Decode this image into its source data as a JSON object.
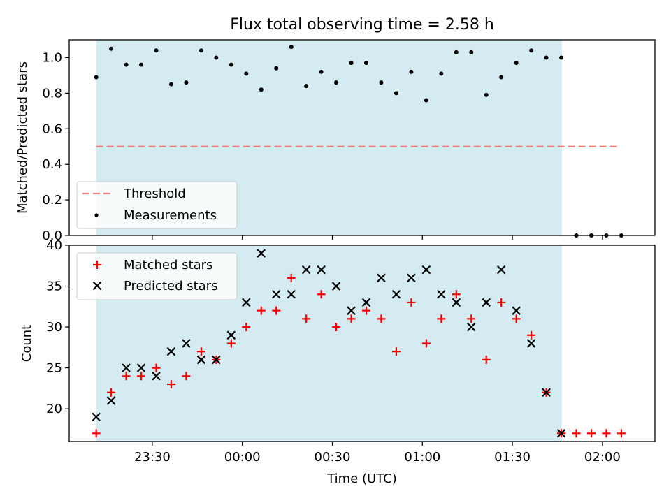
{
  "chart_data": {
    "title": "Flux total observing time = 2.58 h",
    "xlabel": "Time (UTC)",
    "x_ticks": [
      "23:30",
      "00:00",
      "00:30",
      "01:00",
      "01:30",
      "02:00"
    ],
    "x_tick_minutes": [
      -30,
      0,
      30,
      60,
      90,
      120
    ],
    "x_range_minutes": [
      -57.7,
      137.5
    ],
    "observing_window_minutes": [
      -48.7,
      106.5
    ],
    "shade_color": "#d4ebf1",
    "times": [
      "23:21",
      "23:26",
      "23:31",
      "23:36",
      "23:41",
      "23:46",
      "23:51",
      "23:56",
      "00:01",
      "00:06",
      "00:11",
      "00:16",
      "00:21",
      "00:26",
      "00:31",
      "00:36",
      "00:41",
      "00:46",
      "00:51",
      "00:56",
      "01:01",
      "01:06",
      "01:11",
      "01:16",
      "01:21",
      "01:26",
      "01:31",
      "01:36",
      "01:41",
      "01:46",
      "01:51",
      "01:56",
      "02:01",
      "02:06"
    ],
    "x_minutes": [
      -39,
      -34,
      -29,
      -24,
      -19,
      -14,
      -9,
      -4,
      1,
      6,
      11,
      16,
      21,
      26,
      31,
      36,
      41,
      46,
      51,
      56,
      61,
      66,
      71,
      76,
      81,
      86,
      91,
      96,
      101,
      106,
      111,
      116,
      121,
      126
    ],
    "panels": [
      {
        "type": "scatter",
        "ylabel": "Matched/Predicted stars",
        "ylim": [
          0.0,
          1.1
        ],
        "y_ticks": [
          0.0,
          0.2,
          0.4,
          0.6,
          0.8,
          1.0
        ],
        "y_tick_labels": [
          "0.0",
          "0.2",
          "0.4",
          "0.6",
          "0.8",
          "1.0"
        ],
        "threshold": {
          "name": "Threshold",
          "value": 0.5,
          "x_range_minutes": [
            -48.7,
            126
          ],
          "color": "#f08080"
        },
        "series": [
          {
            "name": "Measurements",
            "color": "#000000",
            "x_minutes": [
              -48.7,
              -43.7,
              -38.7,
              -33.7,
              -28.7,
              -23.7,
              -18.7,
              -13.7,
              -8.7,
              -3.7,
              1.3,
              6.3,
              11.3,
              16.3,
              21.3,
              26.3,
              31.3,
              36.3,
              41.3,
              46.3,
              51.3,
              56.3,
              61.3,
              66.3,
              71.3,
              76.3,
              81.3,
              86.3,
              91.3,
              96.3,
              101.3,
              106.3,
              111.3,
              116.3,
              121.3,
              126.3
            ],
            "values": [
              0.89,
              1.05,
              0.96,
              0.96,
              1.04,
              0.85,
              0.86,
              1.04,
              1.0,
              0.96,
              0.91,
              0.82,
              0.94,
              1.06,
              0.84,
              0.92,
              0.86,
              0.97,
              0.97,
              0.86,
              0.8,
              0.92,
              0.76,
              0.91,
              1.03,
              1.03,
              0.79,
              0.89,
              0.97,
              1.04,
              1.0,
              1.0,
              0.0,
              0.0,
              0.0,
              0.0
            ]
          }
        ],
        "legend": "lower-left"
      },
      {
        "type": "scatter",
        "ylabel": "Count",
        "ylim": [
          16,
          40
        ],
        "y_ticks": [
          20,
          25,
          30,
          35,
          40
        ],
        "y_tick_labels": [
          "20",
          "25",
          "30",
          "35",
          "40"
        ],
        "series": [
          {
            "name": "Matched stars",
            "marker": "plus",
            "color": "#ff0000",
            "x_minutes": [
              -48.7,
              -43.7,
              -38.7,
              -33.7,
              -28.7,
              -23.7,
              -18.7,
              -13.7,
              -8.7,
              -3.7,
              1.3,
              6.3,
              11.3,
              16.3,
              21.3,
              26.3,
              31.3,
              36.3,
              41.3,
              46.3,
              51.3,
              56.3,
              61.3,
              66.3,
              71.3,
              76.3,
              81.3,
              86.3,
              91.3,
              96.3,
              101.3,
              106.3,
              111.3,
              116.3,
              121.3,
              126.3
            ],
            "values": [
              17,
              22,
              24,
              24,
              25,
              23,
              24,
              27,
              26,
              28,
              30,
              32,
              32,
              36,
              31,
              34,
              30,
              31,
              32,
              31,
              27,
              33,
              28,
              31,
              34,
              31,
              26,
              33,
              31,
              29,
              22,
              17,
              17,
              17,
              17,
              17
            ]
          },
          {
            "name": "Predicted stars",
            "marker": "x",
            "color": "#000000",
            "x_minutes": [
              -48.7,
              -43.7,
              -38.7,
              -33.7,
              -28.7,
              -23.7,
              -18.7,
              -13.7,
              -8.7,
              -3.7,
              1.3,
              6.3,
              11.3,
              16.3,
              21.3,
              26.3,
              31.3,
              36.3,
              41.3,
              46.3,
              51.3,
              56.3,
              61.3,
              66.3,
              71.3,
              76.3,
              81.3,
              86.3,
              91.3,
              96.3,
              101.3,
              106.3
            ],
            "values": [
              19,
              21,
              25,
              25,
              24,
              27,
              28,
              26,
              26,
              29,
              33,
              39,
              34,
              34,
              37,
              37,
              35,
              32,
              33,
              36,
              34,
              36,
              37,
              34,
              33,
              30,
              33,
              37,
              32,
              28,
              22,
              17
            ]
          }
        ],
        "legend": "upper-left"
      }
    ]
  }
}
